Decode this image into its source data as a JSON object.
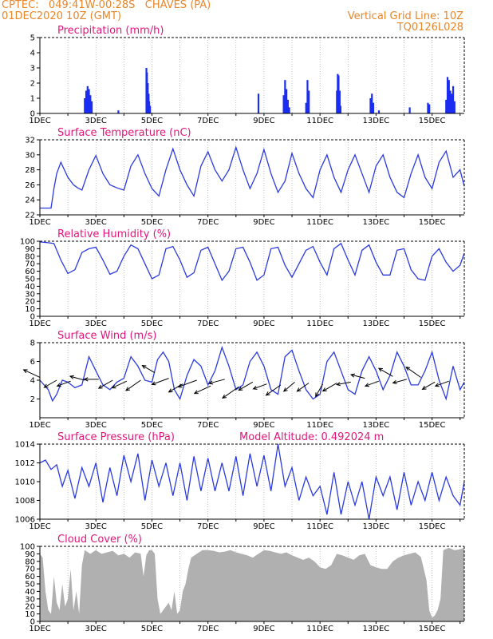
{
  "header": {
    "line1": "CPTEC:   049:41W-00:28S   CHAVES (PA)",
    "line2": "01DEC2020 10Z (GMT)",
    "right1": "Vertical Grid Line: 10Z",
    "right2": "TQ0126L028"
  },
  "colors": {
    "header": "#e8862a",
    "title": "#e0167a",
    "line": "#2a3ae0",
    "bar": "#1a2df0",
    "cloud": "#b0b0b0",
    "arrow": "#000000"
  },
  "x_tick_labels": [
    "1DEC",
    "3DEC",
    "5DEC",
    "7DEC",
    "9DEC",
    "11DEC",
    "13DEC",
    "15DEC"
  ],
  "chart_data": [
    {
      "id": "precip",
      "type": "bar",
      "title": "Precipitation (mm/h)",
      "ylim": [
        0,
        5
      ],
      "yticks": [
        0,
        1,
        2,
        3,
        4,
        5
      ],
      "x_range_days": [
        1,
        16.15
      ],
      "x": [
        2.6,
        2.65,
        2.7,
        2.75,
        2.8,
        2.85,
        3.8,
        4.8,
        4.82,
        4.85,
        4.88,
        4.9,
        4.93,
        8.8,
        9.7,
        9.75,
        9.8,
        9.85,
        9.9,
        10.5,
        10.55,
        10.6,
        11.6,
        11.63,
        11.66,
        11.7,
        11.73,
        12.8,
        12.85,
        12.9,
        13.1,
        14.2,
        14.85,
        14.9,
        15.5,
        15.55,
        15.6,
        15.65,
        15.7,
        15.75,
        15.8
      ],
      "values": [
        1.0,
        1.5,
        1.8,
        1.6,
        1.2,
        0.8,
        0.2,
        3.0,
        2.7,
        2.0,
        1.3,
        0.8,
        0.5,
        1.3,
        1.2,
        2.2,
        1.6,
        0.9,
        0.4,
        0.7,
        2.2,
        1.5,
        1.5,
        2.6,
        2.5,
        1.5,
        0.5,
        1.0,
        1.3,
        0.7,
        0.2,
        0.4,
        0.7,
        0.6,
        0.9,
        2.4,
        2.2,
        1.5,
        1.3,
        1.8,
        0.8
      ]
    },
    {
      "id": "temp",
      "type": "line",
      "title": "Surface Temperature (nC)",
      "ylim": [
        22,
        32
      ],
      "yticks": [
        22,
        24,
        26,
        28,
        30,
        32
      ],
      "x_range_days": [
        1,
        16.15
      ],
      "x": [
        1.0,
        1.4,
        1.5,
        1.6,
        1.75,
        2.0,
        2.2,
        2.35,
        2.5,
        2.75,
        3.0,
        3.25,
        3.5,
        3.75,
        4.0,
        4.25,
        4.5,
        4.75,
        5.0,
        5.25,
        5.5,
        5.75,
        6.0,
        6.25,
        6.5,
        6.75,
        7.0,
        7.25,
        7.5,
        7.75,
        8.0,
        8.25,
        8.5,
        8.75,
        9.0,
        9.25,
        9.5,
        9.75,
        10.0,
        10.25,
        10.5,
        10.75,
        11.0,
        11.25,
        11.5,
        11.75,
        12.0,
        12.25,
        12.5,
        12.75,
        13.0,
        13.25,
        13.5,
        13.75,
        14.0,
        14.25,
        14.5,
        14.75,
        15.0,
        15.25,
        15.5,
        15.75,
        16.0,
        16.15
      ],
      "values": [
        22.9,
        22.9,
        25.5,
        27.5,
        29.0,
        27.0,
        26.0,
        25.6,
        25.3,
        28.0,
        29.9,
        27.5,
        26.0,
        25.6,
        25.3,
        28.5,
        30.0,
        27.5,
        25.5,
        24.5,
        28.0,
        30.8,
        28.0,
        26.0,
        24.5,
        28.5,
        30.4,
        28.0,
        26.5,
        28.0,
        31.0,
        28.0,
        25.5,
        27.5,
        30.7,
        27.5,
        25.0,
        26.5,
        30.2,
        27.5,
        25.5,
        24.3,
        28.0,
        30.0,
        27.0,
        25.0,
        28.0,
        30.0,
        27.5,
        25.0,
        28.5,
        30.0,
        27.0,
        25.0,
        24.3,
        27.5,
        30.0,
        27.0,
        25.5,
        29.0,
        30.5,
        27.0,
        28.0,
        25.8
      ]
    },
    {
      "id": "rh",
      "type": "line",
      "title": "Relative Humidity (%)",
      "ylim": [
        0,
        100
      ],
      "yticks": [
        0,
        10,
        20,
        30,
        40,
        50,
        60,
        70,
        80,
        90,
        100
      ],
      "x_range_days": [
        1,
        16.15
      ],
      "x": [
        1.0,
        1.3,
        1.5,
        1.75,
        2.0,
        2.25,
        2.5,
        2.75,
        3.0,
        3.25,
        3.5,
        3.75,
        4.0,
        4.25,
        4.5,
        4.75,
        5.0,
        5.25,
        5.5,
        5.75,
        6.0,
        6.25,
        6.5,
        6.75,
        7.0,
        7.25,
        7.5,
        7.75,
        8.0,
        8.25,
        8.5,
        8.75,
        9.0,
        9.25,
        9.5,
        9.75,
        10.0,
        10.25,
        10.5,
        10.75,
        11.0,
        11.25,
        11.5,
        11.75,
        12.0,
        12.25,
        12.5,
        12.75,
        13.0,
        13.25,
        13.5,
        13.75,
        14.0,
        14.25,
        14.5,
        14.75,
        15.0,
        15.25,
        15.5,
        15.75,
        16.0,
        16.15
      ],
      "values": [
        99,
        98,
        97,
        75,
        57,
        62,
        85,
        90,
        92,
        75,
        56,
        60,
        80,
        95,
        90,
        70,
        50,
        55,
        90,
        93,
        75,
        52,
        58,
        88,
        92,
        70,
        48,
        60,
        90,
        92,
        72,
        48,
        55,
        90,
        92,
        68,
        52,
        70,
        88,
        93,
        72,
        55,
        90,
        97,
        75,
        55,
        88,
        95,
        72,
        55,
        55,
        88,
        90,
        62,
        50,
        48,
        80,
        90,
        72,
        60,
        68,
        84
      ]
    },
    {
      "id": "wind",
      "type": "line",
      "title": "Surface Wind (m/s)",
      "ylim": [
        0,
        8
      ],
      "yticks": [
        2,
        4,
        6,
        8
      ],
      "x_range_days": [
        1,
        16.15
      ],
      "x": [
        1.0,
        1.15,
        1.3,
        1.45,
        1.6,
        1.8,
        2.0,
        2.25,
        2.5,
        2.75,
        3.0,
        3.25,
        3.5,
        3.75,
        4.0,
        4.25,
        4.5,
        4.75,
        5.0,
        5.2,
        5.4,
        5.6,
        5.8,
        6.0,
        6.25,
        6.5,
        6.75,
        7.0,
        7.25,
        7.5,
        7.75,
        8.0,
        8.25,
        8.5,
        8.75,
        9.0,
        9.25,
        9.5,
        9.75,
        10.0,
        10.25,
        10.5,
        10.75,
        11.0,
        11.25,
        11.5,
        11.75,
        12.0,
        12.25,
        12.5,
        12.75,
        13.0,
        13.25,
        13.5,
        13.75,
        14.0,
        14.25,
        14.5,
        14.75,
        15.0,
        15.25,
        15.5,
        15.75,
        16.0,
        16.15
      ],
      "values": [
        4.0,
        3.5,
        3.0,
        1.8,
        2.5,
        4.0,
        3.8,
        3.2,
        3.5,
        6.5,
        5.0,
        3.5,
        3.0,
        3.8,
        4.2,
        6.5,
        5.5,
        4.0,
        3.8,
        6.2,
        7.0,
        6.0,
        3.0,
        2.0,
        4.5,
        6.2,
        5.5,
        3.5,
        5.0,
        7.5,
        5.5,
        3.0,
        3.5,
        6.0,
        7.0,
        5.5,
        3.0,
        2.5,
        6.5,
        7.2,
        5.0,
        3.0,
        2.0,
        2.5,
        6.0,
        7.0,
        5.0,
        3.0,
        2.5,
        5.0,
        6.5,
        5.0,
        3.0,
        4.5,
        7.0,
        5.5,
        3.5,
        3.5,
        5.0,
        7.0,
        4.0,
        2.0,
        5.5,
        3.0,
        3.8
      ],
      "arrows": [
        {
          "day": 1.0,
          "v": 4.3,
          "dir_deg": 155,
          "len": 5.0
        },
        {
          "day": 1.6,
          "v": 4.0,
          "dir_deg": 210,
          "len": 4.0
        },
        {
          "day": 2.1,
          "v": 3.9,
          "dir_deg": 200,
          "len": 4.0
        },
        {
          "day": 2.6,
          "v": 4.0,
          "dir_deg": 165,
          "len": 4.2
        },
        {
          "day": 3.1,
          "v": 4.1,
          "dir_deg": 180,
          "len": 4.0
        },
        {
          "day": 3.6,
          "v": 4.0,
          "dir_deg": 210,
          "len": 4.5
        },
        {
          "day": 4.1,
          "v": 3.9,
          "dir_deg": 205,
          "len": 4.5
        },
        {
          "day": 4.6,
          "v": 4.0,
          "dir_deg": 215,
          "len": 5.0
        },
        {
          "day": 5.1,
          "v": 4.8,
          "dir_deg": 150,
          "len": 4.0
        },
        {
          "day": 5.6,
          "v": 4.2,
          "dir_deg": 200,
          "len": 5.0
        },
        {
          "day": 6.1,
          "v": 3.6,
          "dir_deg": 210,
          "len": 4.5
        },
        {
          "day": 6.6,
          "v": 4.0,
          "dir_deg": 200,
          "len": 5.5
        },
        {
          "day": 7.1,
          "v": 3.4,
          "dir_deg": 205,
          "len": 5.0
        },
        {
          "day": 7.6,
          "v": 4.1,
          "dir_deg": 195,
          "len": 4.5
        },
        {
          "day": 8.1,
          "v": 3.3,
          "dir_deg": 215,
          "len": 5.5
        },
        {
          "day": 8.6,
          "v": 3.8,
          "dir_deg": 210,
          "len": 4.5
        },
        {
          "day": 9.1,
          "v": 3.6,
          "dir_deg": 200,
          "len": 4.0
        },
        {
          "day": 9.6,
          "v": 3.5,
          "dir_deg": 215,
          "len": 5.0
        },
        {
          "day": 10.1,
          "v": 3.8,
          "dir_deg": 220,
          "len": 4.0
        },
        {
          "day": 10.6,
          "v": 3.7,
          "dir_deg": 215,
          "len": 4.0
        },
        {
          "day": 11.1,
          "v": 3.6,
          "dir_deg": 240,
          "len": 4.0
        },
        {
          "day": 11.6,
          "v": 3.7,
          "dir_deg": 210,
          "len": 4.5
        },
        {
          "day": 12.1,
          "v": 3.8,
          "dir_deg": 190,
          "len": 4.0
        },
        {
          "day": 12.6,
          "v": 4.2,
          "dir_deg": 165,
          "len": 4.0
        },
        {
          "day": 13.1,
          "v": 3.9,
          "dir_deg": 200,
          "len": 4.0
        },
        {
          "day": 13.6,
          "v": 4.4,
          "dir_deg": 150,
          "len": 4.5
        },
        {
          "day": 14.1,
          "v": 4.1,
          "dir_deg": 195,
          "len": 4.0
        },
        {
          "day": 14.6,
          "v": 4.3,
          "dir_deg": 145,
          "len": 5.0
        },
        {
          "day": 15.1,
          "v": 3.8,
          "dir_deg": 210,
          "len": 4.0
        },
        {
          "day": 15.6,
          "v": 3.9,
          "dir_deg": 200,
          "len": 4.0
        }
      ]
    },
    {
      "id": "pres",
      "type": "line",
      "title": "Surface Pressure (hPa)",
      "annotation": "Model Altitude: 0.492024 m",
      "ylim": [
        1006,
        1014
      ],
      "yticks": [
        1006,
        1008,
        1010,
        1012,
        1014
      ],
      "x_range_days": [
        1,
        16.15
      ],
      "x": [
        1.0,
        1.2,
        1.4,
        1.6,
        1.8,
        2.0,
        2.25,
        2.5,
        2.75,
        3.0,
        3.25,
        3.5,
        3.75,
        4.0,
        4.25,
        4.5,
        4.75,
        5.0,
        5.25,
        5.5,
        5.75,
        6.0,
        6.25,
        6.5,
        6.75,
        7.0,
        7.25,
        7.5,
        7.75,
        8.0,
        8.25,
        8.5,
        8.75,
        9.0,
        9.25,
        9.5,
        9.75,
        10.0,
        10.25,
        10.5,
        10.75,
        11.0,
        11.25,
        11.5,
        11.75,
        12.0,
        12.25,
        12.5,
        12.75,
        13.0,
        13.25,
        13.5,
        13.75,
        14.0,
        14.25,
        14.5,
        14.75,
        15.0,
        15.25,
        15.5,
        15.75,
        16.0,
        16.15
      ],
      "values": [
        1012.0,
        1012.3,
        1011.3,
        1011.8,
        1009.5,
        1011.2,
        1008.2,
        1011.5,
        1009.5,
        1012.0,
        1007.8,
        1011.5,
        1008.5,
        1012.8,
        1010.0,
        1013.0,
        1008.0,
        1012.3,
        1009.5,
        1012.0,
        1008.5,
        1012.0,
        1008.0,
        1012.7,
        1009.0,
        1012.5,
        1009.0,
        1012.0,
        1009.0,
        1012.7,
        1008.5,
        1013.0,
        1009.5,
        1012.8,
        1009.0,
        1014.0,
        1009.5,
        1011.5,
        1008.0,
        1010.5,
        1008.5,
        1009.5,
        1006.5,
        1011.0,
        1006.5,
        1010.0,
        1007.5,
        1010.0,
        1006.0,
        1010.5,
        1008.5,
        1010.5,
        1007.0,
        1011.0,
        1007.5,
        1010.0,
        1008.0,
        1011.0,
        1008.0,
        1010.5,
        1008.5,
        1007.5,
        1010.0
      ]
    },
    {
      "id": "cloud",
      "type": "area",
      "title": "Cloud Cover (%)",
      "ylim": [
        0,
        100
      ],
      "yticks": [
        0,
        10,
        20,
        30,
        40,
        50,
        60,
        70,
        80,
        90,
        100
      ],
      "x_range_days": [
        1,
        16.15
      ],
      "x": [
        1.0,
        1.1,
        1.2,
        1.3,
        1.4,
        1.5,
        1.6,
        1.7,
        1.8,
        1.9,
        2.0,
        2.1,
        2.2,
        2.3,
        2.4,
        2.5,
        2.6,
        2.8,
        3.0,
        3.2,
        3.4,
        3.6,
        3.8,
        4.0,
        4.2,
        4.4,
        4.6,
        4.7,
        4.8,
        4.9,
        5.0,
        5.1,
        5.2,
        5.3,
        5.4,
        5.5,
        5.6,
        5.7,
        5.8,
        5.9,
        6.0,
        6.1,
        6.2,
        6.3,
        6.4,
        6.6,
        6.8,
        7.0,
        7.2,
        7.4,
        7.6,
        7.8,
        8.0,
        8.2,
        8.4,
        8.6,
        8.8,
        9.0,
        9.2,
        9.4,
        9.6,
        9.8,
        10.0,
        10.2,
        10.4,
        10.6,
        10.8,
        11.0,
        11.2,
        11.4,
        11.6,
        11.8,
        12.0,
        12.2,
        12.4,
        12.6,
        12.8,
        13.0,
        13.2,
        13.4,
        13.6,
        13.8,
        14.0,
        14.2,
        14.4,
        14.6,
        14.8,
        14.9,
        15.0,
        15.1,
        15.2,
        15.3,
        15.4,
        15.6,
        15.8,
        16.0,
        16.15
      ],
      "values": [
        90,
        85,
        40,
        15,
        10,
        60,
        25,
        15,
        50,
        20,
        30,
        70,
        15,
        40,
        10,
        75,
        95,
        90,
        95,
        90,
        92,
        94,
        88,
        90,
        85,
        92,
        90,
        60,
        88,
        95,
        95,
        90,
        30,
        10,
        15,
        20,
        25,
        15,
        40,
        10,
        15,
        40,
        50,
        70,
        85,
        90,
        95,
        95,
        94,
        92,
        93,
        95,
        92,
        90,
        88,
        85,
        90,
        95,
        94,
        92,
        90,
        92,
        88,
        85,
        82,
        85,
        80,
        72,
        70,
        75,
        90,
        88,
        85,
        82,
        88,
        90,
        75,
        72,
        70,
        70,
        80,
        85,
        88,
        90,
        92,
        86,
        55,
        15,
        5,
        8,
        15,
        30,
        95,
        98,
        95,
        96,
        98
      ]
    }
  ]
}
